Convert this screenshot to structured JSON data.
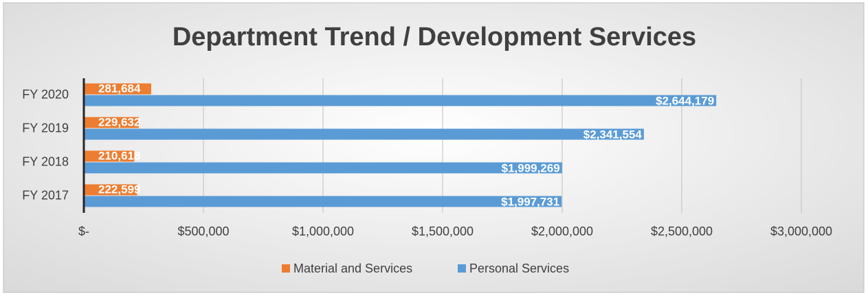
{
  "chart_data": {
    "type": "hbar",
    "title": "Department Trend / Development Services",
    "categories": [
      "FY 2017",
      "FY 2018",
      "FY 2019",
      "FY 2020"
    ],
    "series": [
      {
        "name": "Material and Services",
        "color": "#ed7d31",
        "values": [
          222599,
          210618,
          229632,
          281684
        ],
        "value_labels": [
          "222,599",
          "210,618",
          "229,632",
          "281,684"
        ]
      },
      {
        "name": "Personal Services",
        "color": "#5b9bd5",
        "values": [
          1997731,
          1999269,
          2341554,
          2644179
        ],
        "value_labels": [
          "$1,997,731",
          "$1,999,269",
          "$2,341,554",
          "$2,644,179"
        ]
      }
    ],
    "xlim": [
      0,
      3000000
    ],
    "xticks": [
      {
        "value": 0,
        "label": "$-"
      },
      {
        "value": 500000,
        "label": "$500,000"
      },
      {
        "value": 1000000,
        "label": "$1,000,000"
      },
      {
        "value": 1500000,
        "label": "$1,500,000"
      },
      {
        "value": 2000000,
        "label": "$2,000,000"
      },
      {
        "value": 2500000,
        "label": "$2,500,000"
      },
      {
        "value": 3000000,
        "label": "$3,000,000"
      }
    ],
    "grid": true,
    "legend": "bottom"
  }
}
